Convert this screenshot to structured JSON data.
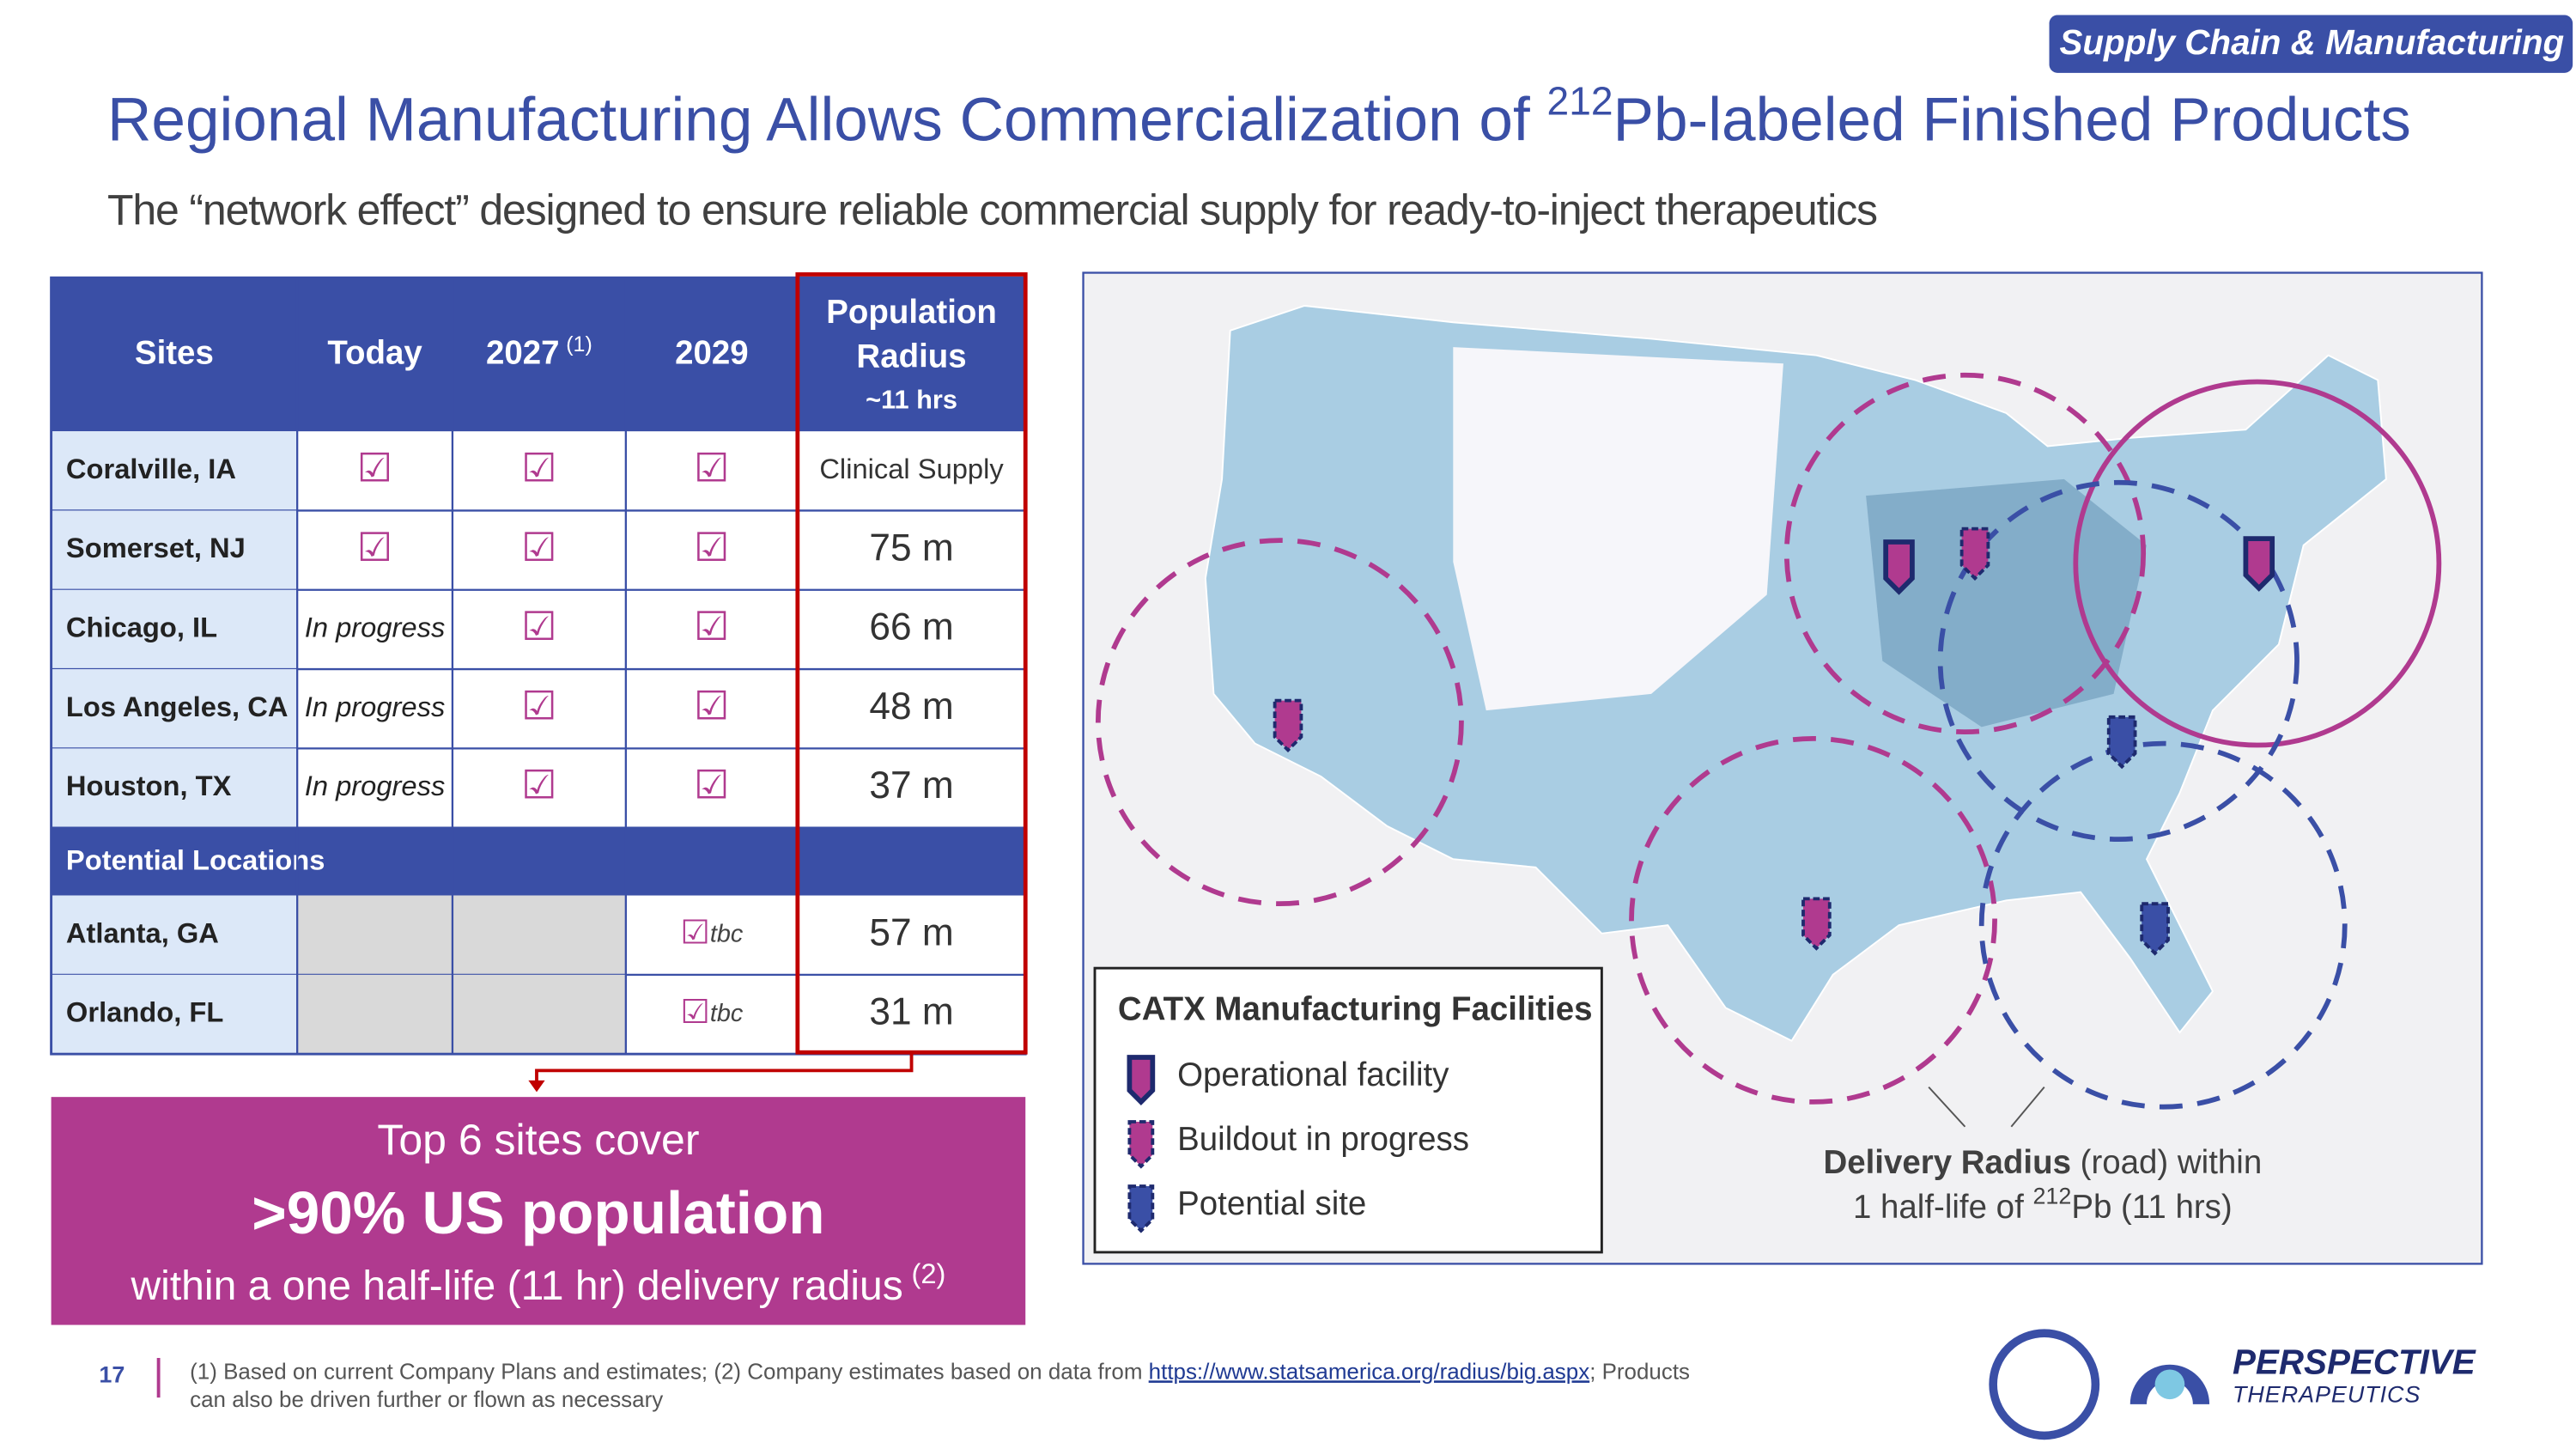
{
  "tag": "Supply Chain & Manufacturing",
  "title": {
    "before": "Regional Manufacturing Allows Commercialization of ",
    "sup": "212",
    "after": "Pb-labeled Finished Products"
  },
  "subtitle": "The “network effect” designed to ensure reliable commercial supply for ready-to-inject therapeutics",
  "table": {
    "headers": [
      {
        "text": "Sites"
      },
      {
        "text": "Today"
      },
      {
        "text": "2027",
        "note": "(1)"
      },
      {
        "text": "2029"
      }
    ],
    "radius_header": [
      "Population",
      "Radius",
      "~11 hrs"
    ],
    "rows": [
      [
        "Coralville, IA",
        "☑",
        "☑",
        "☑",
        "Clinical Supply"
      ],
      [
        "Somerset, NJ",
        "☑",
        "☑",
        "☑",
        "75 m"
      ],
      [
        "Chicago, IL",
        "In progress",
        "☑",
        "☑",
        "66 m"
      ],
      [
        "Los Angeles, CA",
        "In progress",
        "☑",
        "☑",
        "48 m"
      ],
      [
        "Houston, TX",
        "In progress",
        "☑",
        "☑",
        "37 m"
      ]
    ],
    "section": "Potential Locations",
    "potential_rows": [
      [
        "Atlanta, GA",
        null,
        null,
        {
          "mark": "☑",
          "note": "tbc"
        },
        "57 m"
      ],
      [
        "Orlando, FL",
        null,
        null,
        {
          "mark": "☑",
          "note": "tbc"
        },
        "31 m"
      ]
    ]
  },
  "callout": {
    "line1": "Top 6 sites cover",
    "line2": ">90% US population",
    "line3": "within a one half-life (11 hr) delivery radius",
    "note": "(2)"
  },
  "legend": {
    "title": "CATX Manufacturing Facilities",
    "items": [
      "Operational facility",
      "Buildout in progress",
      "Potential site"
    ]
  },
  "delivery": {
    "bold": "Delivery Radius",
    "rest": " (road) within",
    "line2_before": "1 half-life of ",
    "sup": "212",
    "line2_after": "Pb (11 hrs)"
  },
  "footer": {
    "page": "17",
    "note_before": "(1) Based on current Company Plans and estimates; (2) Company estimates based on data from ",
    "link": "https://www.statsamerica.org/radius/big.aspx",
    "note_after": "; Products",
    "note_line2": "can also be driven further or flown as necessary"
  },
  "logo": {
    "name": "PERSPECTIVE",
    "sub": "THERAPEUTICS"
  }
}
